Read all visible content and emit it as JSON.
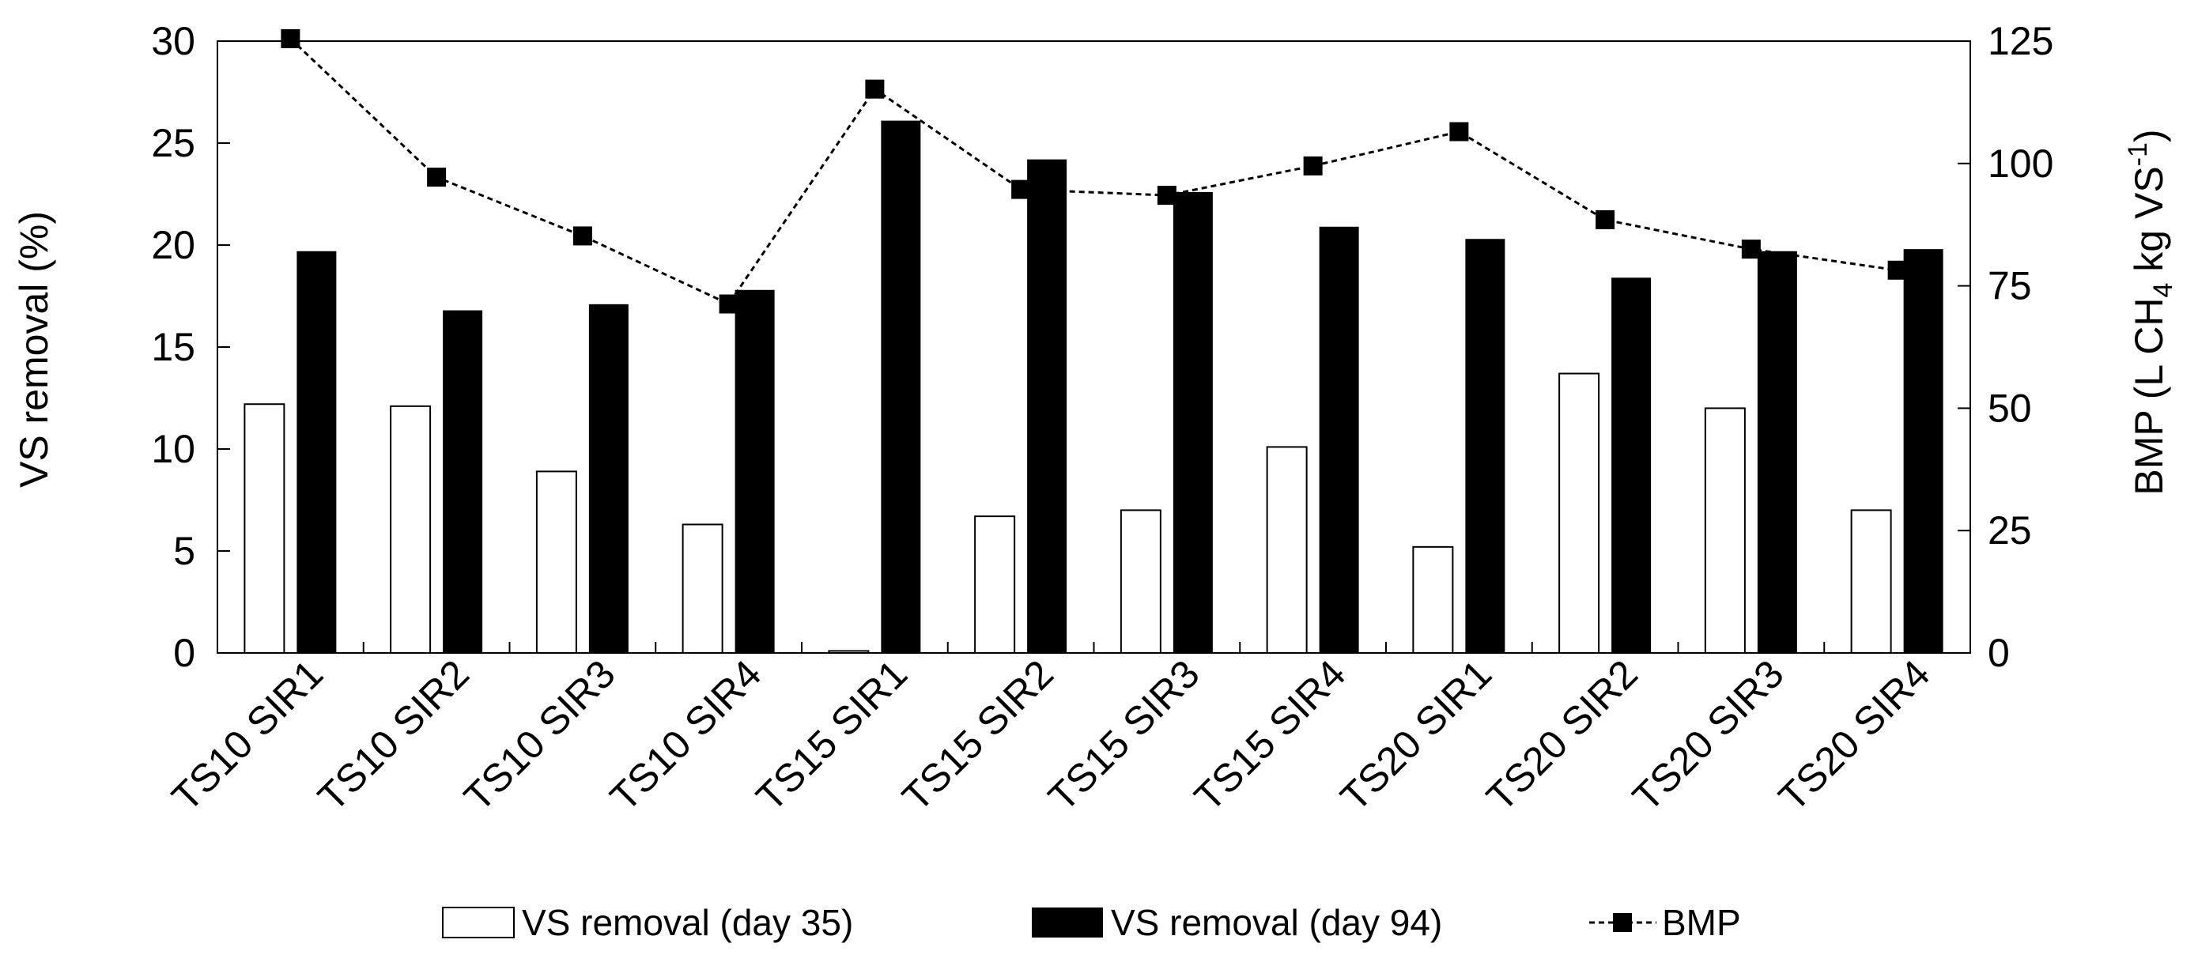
{
  "chart_data": {
    "type": "bar",
    "categories": [
      "TS10 SIR1",
      "TS10 SIR2",
      "TS10 SIR3",
      "TS10 SIR4",
      "TS15 SIR1",
      "TS15 SIR2",
      "TS15 SIR3",
      "TS15 SIR4",
      "TS20 SIR1",
      "TS20 SIR2",
      "TS20 SIR3",
      "TS20 SIR4"
    ],
    "series": [
      {
        "name": "VS removal (day 35)",
        "axis": "left",
        "style": "bar-white",
        "values": [
          12.2,
          12.1,
          8.9,
          6.3,
          0.1,
          6.7,
          7.0,
          10.1,
          5.2,
          13.7,
          12.0,
          7.0
        ]
      },
      {
        "name": "VS removal (day 94)",
        "axis": "left",
        "style": "bar-black",
        "values": [
          19.7,
          16.8,
          17.1,
          17.8,
          26.1,
          24.2,
          22.6,
          20.9,
          20.3,
          18.4,
          19.7,
          19.8
        ]
      },
      {
        "name": "BMP",
        "axis": "right",
        "style": "dashed-line-square",
        "values": [
          125.5,
          97.2,
          85.2,
          71.3,
          115.2,
          94.7,
          93.5,
          99.5,
          106.5,
          88.5,
          82.5,
          78.2
        ]
      }
    ],
    "legend_labels": {
      "day35": "VS removal (day 35)",
      "day94": "VS removal (day 94)",
      "bmp": "BMP"
    },
    "ylabel": "VS removal (%)",
    "y2label": "BMP (L CH4 kg VS-1)",
    "y2label_parts": {
      "a": "BMP (L CH",
      "sub": "4",
      "b": " kg VS",
      "sup": "-1",
      "c": ")"
    },
    "ylim": [
      0,
      30
    ],
    "y2lim": [
      0,
      125
    ],
    "yticks": [
      "0",
      "5",
      "10",
      "15",
      "20",
      "25",
      "30"
    ],
    "y2ticks": [
      "0",
      "25",
      "50",
      "75",
      "100",
      "125"
    ],
    "legend_position": "bottom-center",
    "grid": false
  }
}
